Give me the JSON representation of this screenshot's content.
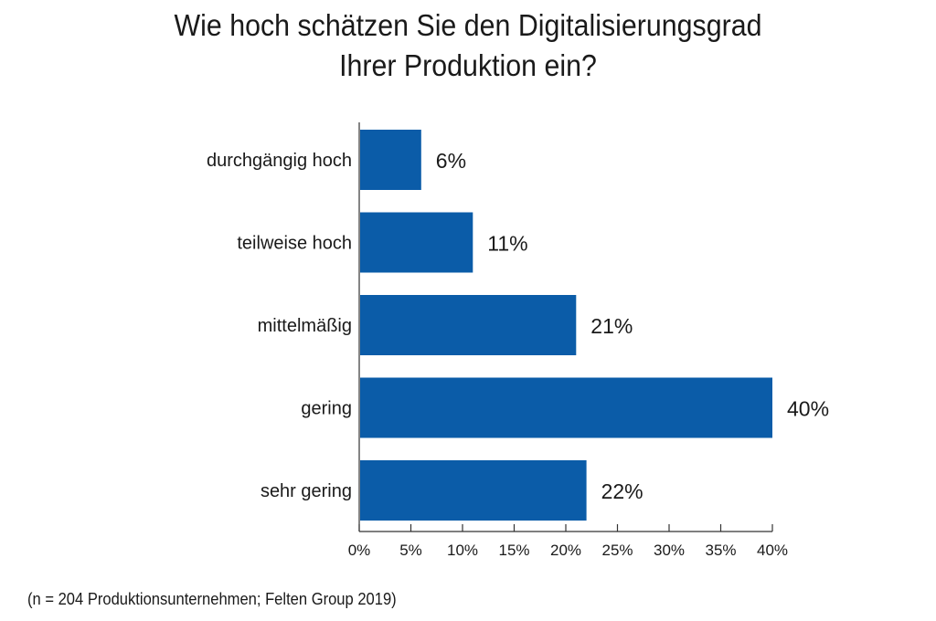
{
  "title_lines": [
    "Wie hoch schätzen Sie den Digitalisierungsgrad",
    "Ihrer Produktion ein?"
  ],
  "source_note": "(n = 204 Produktionsunternehmen; Felten Group 2019)",
  "colors": {
    "bar": "#0b5ca8",
    "axis": "#333333",
    "text": "#1a1a1a"
  },
  "chart_data": {
    "type": "bar",
    "orientation": "horizontal",
    "categories": [
      "durchgängig hoch",
      "teilweise hoch",
      "mittelmäßig",
      "gering",
      "sehr gering"
    ],
    "values": [
      6,
      11,
      21,
      40,
      22
    ],
    "value_labels": [
      "6%",
      "11%",
      "21%",
      "40%",
      "22%"
    ],
    "xlim": [
      0,
      40
    ],
    "xticks": [
      0,
      5,
      10,
      15,
      20,
      25,
      30,
      35,
      40
    ],
    "xtick_labels": [
      "0%",
      "5%",
      "10%",
      "15%",
      "20%",
      "25%",
      "30%",
      "35%",
      "40%"
    ],
    "grid": false,
    "legend": "none"
  }
}
